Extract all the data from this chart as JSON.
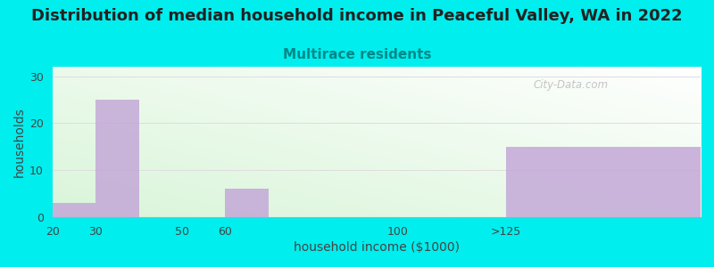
{
  "title": "Distribution of median household income in Peaceful Valley, WA in 2022",
  "subtitle": "Multirace residents",
  "subtitle_color": "#008888",
  "xlabel": "household income ($1000)",
  "ylabel": "households",
  "bar_labels": [
    "20",
    "30",
    "50",
    "60",
    "100",
    ">125"
  ],
  "bar_values": [
    3,
    25,
    0,
    6,
    0,
    15
  ],
  "bar_color": "#c4a8d8",
  "bar_alpha": 0.85,
  "ylim": [
    0,
    32
  ],
  "yticks": [
    0,
    10,
    20,
    30
  ],
  "x_tick_positions": [
    0,
    10,
    30,
    40,
    80,
    105
  ],
  "x_tick_labels": [
    "20",
    "30",
    "50",
    "60",
    "100",
    ">125"
  ],
  "bar_lefts": [
    0,
    10,
    30,
    40,
    80,
    105
  ],
  "bar_widths": [
    10,
    10,
    10,
    10,
    25,
    45
  ],
  "xlim": [
    0,
    150
  ],
  "background_color": "#00eeee",
  "plot_bg_green": "#d8f0d0",
  "plot_bg_white": "#ffffff",
  "title_fontsize": 13,
  "subtitle_fontsize": 11,
  "axis_label_fontsize": 10,
  "watermark_text": "City-Data.com",
  "watermark_color": "#bbbbbb",
  "grid_color": "#dddddd",
  "spine_color": "#aaaaaa"
}
